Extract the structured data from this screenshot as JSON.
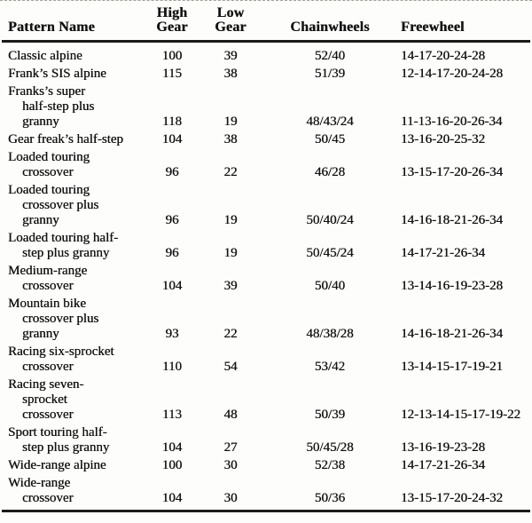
{
  "page": {
    "background_color": "#fdfdfb",
    "text_color": "#121212",
    "rule_color": "#1b1b1b"
  },
  "table": {
    "header": {
      "pattern_name": "Pattern Name",
      "high_gear": [
        "High",
        "Gear"
      ],
      "low_gear": [
        "Low",
        "Gear"
      ],
      "chainwheels": "Chainwheels",
      "freewheel": "Freewheel"
    },
    "rows": [
      {
        "name_lines": [
          "Classic alpine"
        ],
        "high": "100",
        "low": "39",
        "chainwheels": "52/40",
        "freewheel": "14-17-20-24-28"
      },
      {
        "name_lines": [
          "Frank’s SIS alpine"
        ],
        "high": "115",
        "low": "38",
        "chainwheels": "51/39",
        "freewheel": "12-14-17-20-24-28"
      },
      {
        "name_lines": [
          "Franks’s super",
          "half-step plus",
          "granny"
        ],
        "high": "118",
        "low": "19",
        "chainwheels": "48/43/24",
        "freewheel": "11-13-16-20-26-34"
      },
      {
        "name_lines": [
          "Gear freak’s half-step"
        ],
        "high": "104",
        "low": "38",
        "chainwheels": "50/45",
        "freewheel": "13-16-20-25-32"
      },
      {
        "name_lines": [
          "Loaded touring",
          "crossover"
        ],
        "high": "96",
        "low": "22",
        "chainwheels": "46/28",
        "freewheel": "13-15-17-20-26-34"
      },
      {
        "name_lines": [
          "Loaded touring",
          "crossover plus",
          "granny"
        ],
        "high": "96",
        "low": "19",
        "chainwheels": "50/40/24",
        "freewheel": "14-16-18-21-26-34"
      },
      {
        "name_lines": [
          "Loaded touring half-",
          "step plus granny"
        ],
        "high": "96",
        "low": "19",
        "chainwheels": "50/45/24",
        "freewheel": "14-17-21-26-34"
      },
      {
        "name_lines": [
          "Medium-range",
          "crossover"
        ],
        "high": "104",
        "low": "39",
        "chainwheels": "50/40",
        "freewheel": "13-14-16-19-23-28"
      },
      {
        "name_lines": [
          "Mountain bike",
          "crossover plus",
          "granny"
        ],
        "high": "93",
        "low": "22",
        "chainwheels": "48/38/28",
        "freewheel": "14-16-18-21-26-34"
      },
      {
        "name_lines": [
          "Racing six-sprocket",
          "crossover"
        ],
        "high": "110",
        "low": "54",
        "chainwheels": "53/42",
        "freewheel": "13-14-15-17-19-21"
      },
      {
        "name_lines": [
          "Racing seven-",
          "sprocket",
          "crossover"
        ],
        "high": "113",
        "low": "48",
        "chainwheels": "50/39",
        "freewheel": "12-13-14-15-17-19-22"
      },
      {
        "name_lines": [
          "Sport touring half-",
          "step plus granny"
        ],
        "high": "104",
        "low": "27",
        "chainwheels": "50/45/28",
        "freewheel": "13-16-19-23-28"
      },
      {
        "name_lines": [
          "Wide-range alpine"
        ],
        "high": "100",
        "low": "30",
        "chainwheels": "52/38",
        "freewheel": "14-17-21-26-34"
      },
      {
        "name_lines": [
          "Wide-range",
          "crossover"
        ],
        "high": "104",
        "low": "30",
        "chainwheels": "50/36",
        "freewheel": "13-15-17-20-24-32"
      }
    ]
  }
}
